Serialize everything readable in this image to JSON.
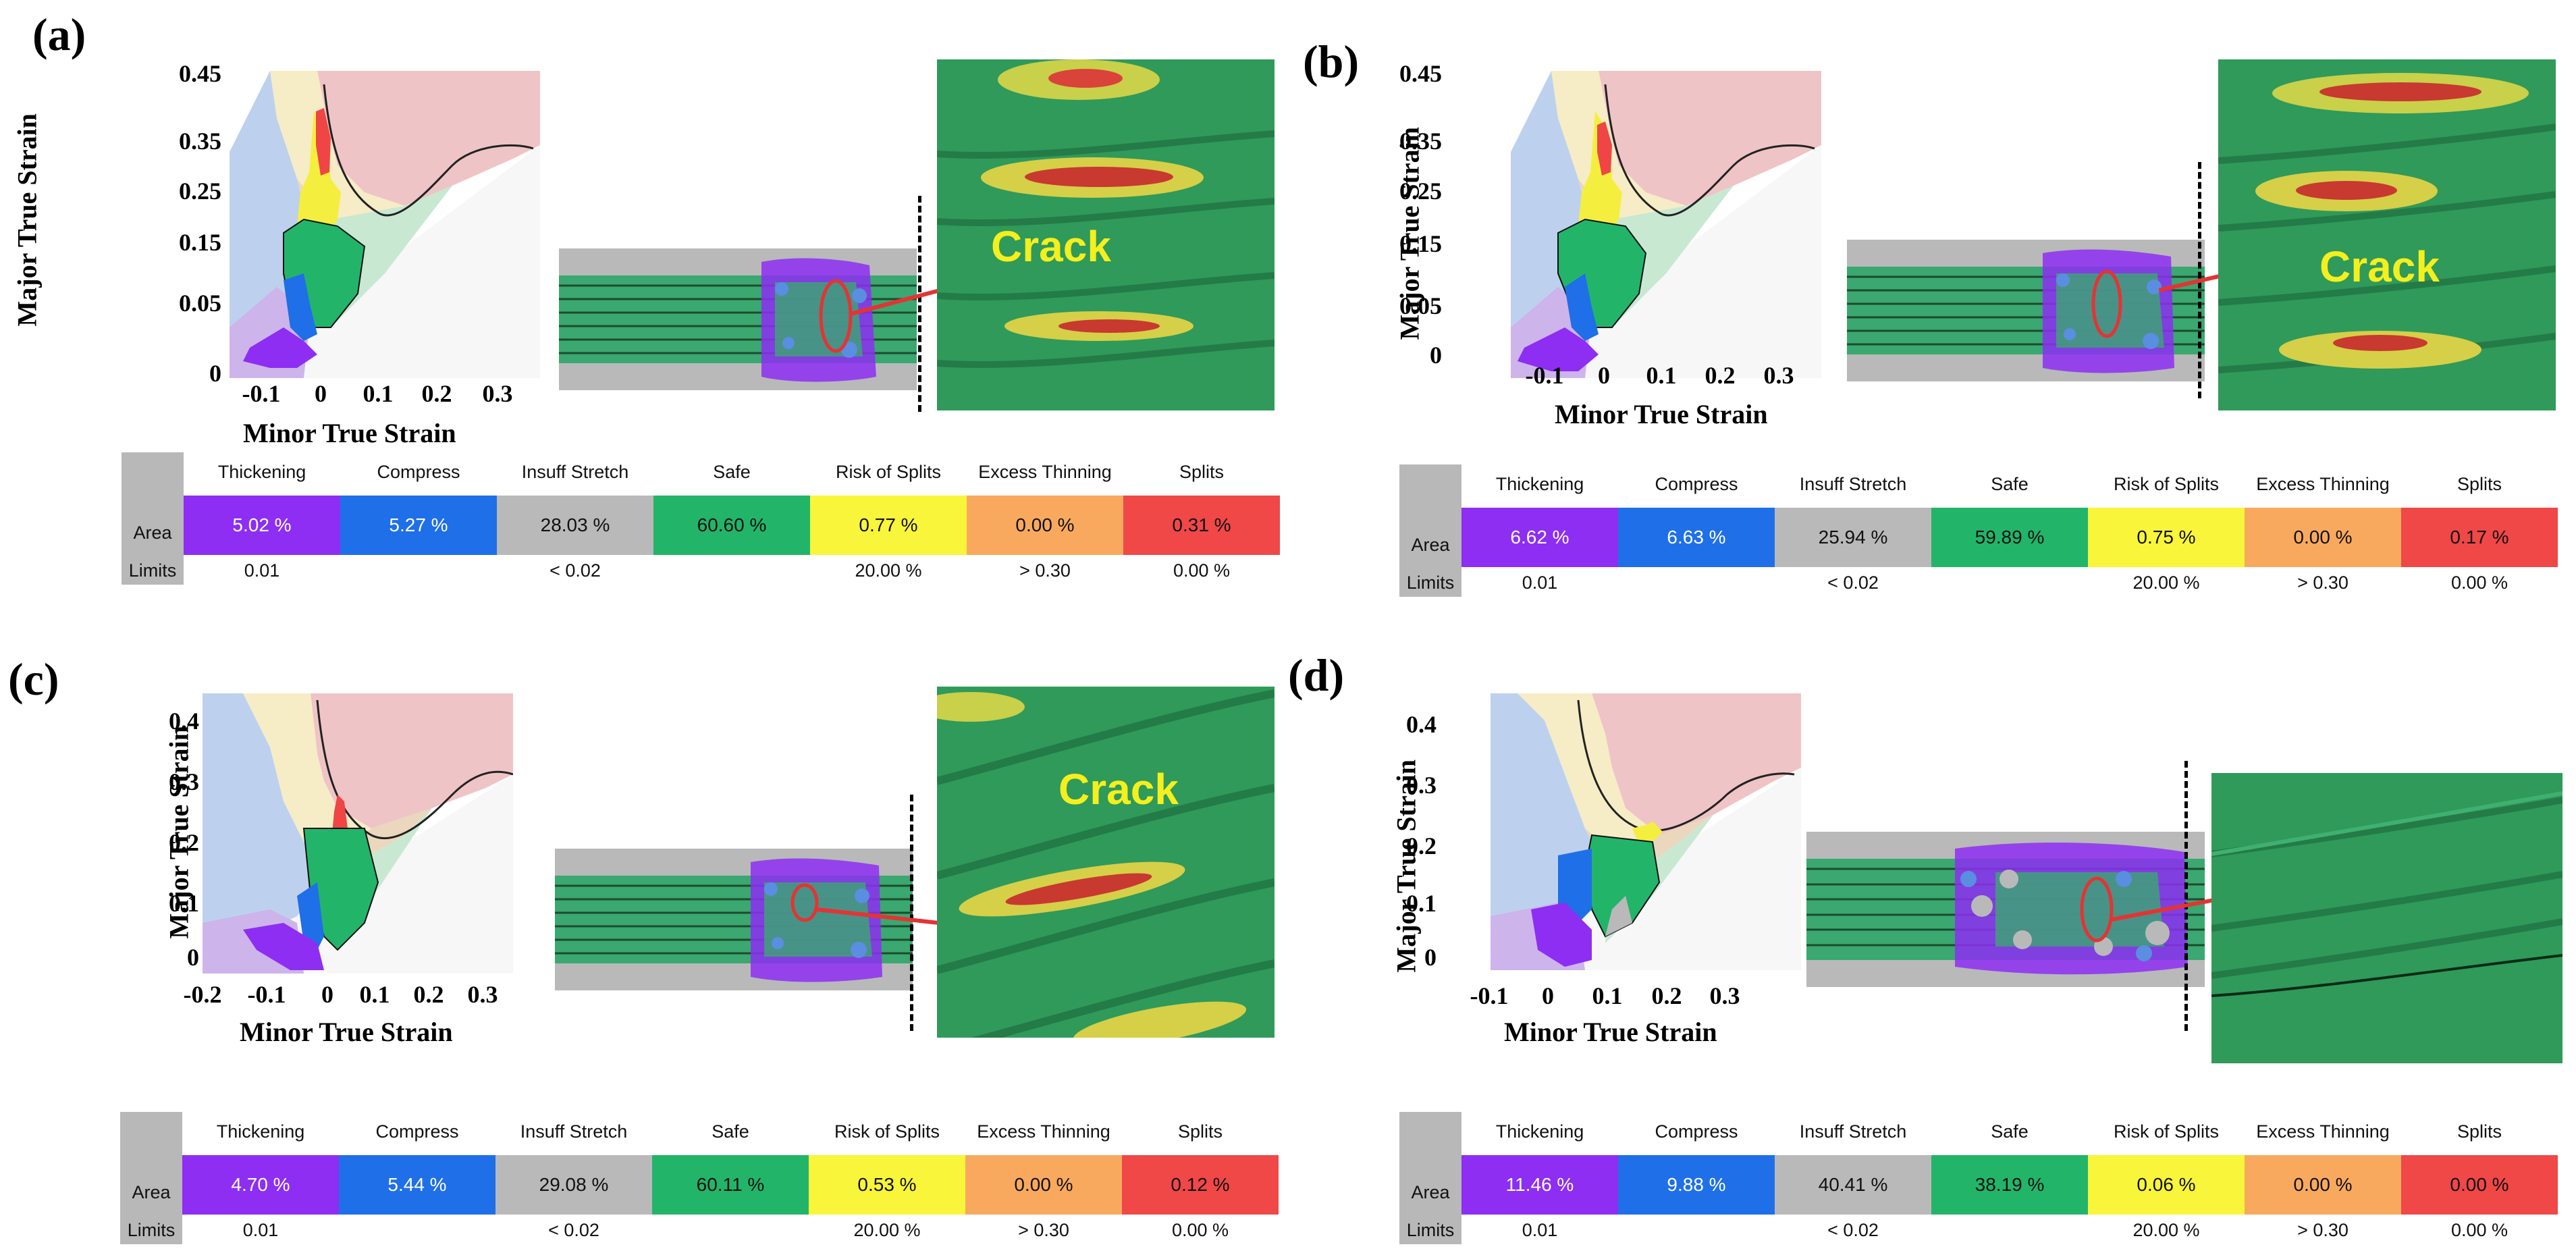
{
  "axes": {
    "y_title": "Major True Strain",
    "x_title": "Minor True Strain"
  },
  "legend_headers": [
    "Thickening",
    "Compress",
    "Insuff Stretch",
    "Safe",
    "Risk of Splits",
    "Excess Thinning",
    "Splits"
  ],
  "legend_colors": [
    "#8d2ef2",
    "#1f6fe8",
    "#b9b9b9",
    "#22b56a",
    "#f8f53b",
    "#f8a95e",
    "#f04747"
  ],
  "legend_row_labels": {
    "area": "Area",
    "limits": "Limits"
  },
  "limits": [
    "0.01",
    "",
    "< 0.02",
    "",
    "20.00 %",
    "> 0.30",
    "0.00 %"
  ],
  "panels": [
    {
      "label": "(a)",
      "crack_label": "Crack",
      "y_ticks": [
        "0.45",
        "0.35",
        "0.25",
        "0.15",
        "0.05",
        "0"
      ],
      "x_ticks": [
        "-0.1",
        "0",
        "0.1",
        "0.2",
        "0.3"
      ],
      "area": [
        "5.02 %",
        "5.27 %",
        "28.03 %",
        "60.60 %",
        "0.77 %",
        "0.00 %",
        "0.31 %"
      ]
    },
    {
      "label": "(b)",
      "crack_label": "Crack",
      "y_ticks": [
        "0.45",
        "0.35",
        "0.25",
        "0.15",
        "0.05",
        "0"
      ],
      "x_ticks": [
        "-0.1",
        "0",
        "0.1",
        "0.2",
        "0.3"
      ],
      "area": [
        "6.62 %",
        "6.63 %",
        "25.94 %",
        "59.89 %",
        "0.75 %",
        "0.00 %",
        "0.17 %"
      ]
    },
    {
      "label": "(c)",
      "crack_label": "Crack",
      "y_ticks": [
        "0.4",
        "0.3",
        "0.2",
        "0.1",
        "0"
      ],
      "x_ticks": [
        "-0.2",
        "-0.1",
        "0",
        "0.1",
        "0.2",
        "0.3"
      ],
      "area": [
        "4.70 %",
        "5.44 %",
        "29.08 %",
        "60.11 %",
        "0.53 %",
        "0.00 %",
        "0.12 %"
      ]
    },
    {
      "label": "(d)",
      "crack_label": "",
      "y_ticks": [
        "0.4",
        "0.3",
        "0.2",
        "0.1",
        "0"
      ],
      "x_ticks": [
        "-0.1",
        "0",
        "0.1",
        "0.2",
        "0.3"
      ],
      "area": [
        "11.46 %",
        "9.88 %",
        "40.41 %",
        "38.19 %",
        "0.06 %",
        "0.00 %",
        "0.00 %"
      ]
    }
  ]
}
